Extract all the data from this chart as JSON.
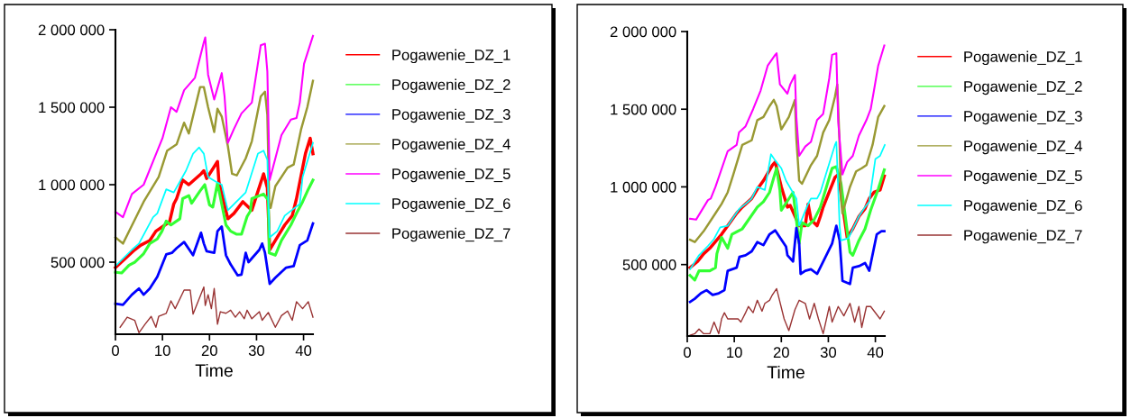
{
  "chart_data": [
    {
      "type": "line",
      "xlabel": "Time",
      "xlim": [
        0,
        42
      ],
      "ylim": [
        35000,
        2000000
      ],
      "xticks": [
        0,
        10,
        20,
        30,
        40
      ],
      "yticks": [
        {
          "value": 500000,
          "label": "500 000"
        },
        {
          "value": 1000000,
          "label": "1 000 000"
        },
        {
          "value": 1500000,
          "label": "1 500 000"
        },
        {
          "value": 2000000,
          "label": "2 000 000"
        }
      ],
      "legend": "right",
      "grid": false,
      "line_style": "solid",
      "marker": "none",
      "series": [
        {
          "name": "Pogawenie_DZ_1",
          "color": "#ff0000",
          "x": [
            0,
            4.1,
            5.4,
            7.3,
            8.6,
            11.5,
            12.4,
            13,
            14.3,
            15.6,
            18.2,
            18.8,
            19.4,
            21.7,
            22,
            23.9,
            25.2,
            27.1,
            29,
            31.5,
            32.3,
            32.8,
            34,
            36,
            37.6,
            38.5,
            40.4,
            41.4,
            42
          ],
          "values": [
            465000,
            580000,
            610000,
            640000,
            700000,
            760000,
            875000,
            910000,
            1030000,
            1000000,
            1070000,
            1090000,
            1040000,
            1150000,
            1020000,
            780000,
            815000,
            890000,
            835000,
            1070000,
            980000,
            580000,
            640000,
            740000,
            800000,
            910000,
            1200000,
            1300000,
            1200000
          ]
        },
        {
          "name": "Pogawenie_DZ_2",
          "color": "#33ff33",
          "x": [
            0,
            1.3,
            2.9,
            4.1,
            6,
            7.3,
            8.9,
            9.9,
            10.8,
            11.8,
            13.7,
            14.3,
            15.6,
            16.2,
            18,
            19,
            20,
            20.7,
            21.7,
            23.5,
            24.5,
            25.8,
            26.8,
            28,
            28.7,
            29,
            31.5,
            32.5,
            32.7,
            34,
            35.3,
            37.3,
            38.5,
            39.8,
            41,
            42
          ],
          "values": [
            435000,
            430000,
            480000,
            500000,
            555000,
            620000,
            650000,
            700000,
            765000,
            740000,
            780000,
            910000,
            930000,
            880000,
            960000,
            1000000,
            870000,
            855000,
            1010000,
            740000,
            700000,
            680000,
            680000,
            795000,
            830000,
            910000,
            940000,
            900000,
            560000,
            545000,
            640000,
            740000,
            815000,
            890000,
            970000,
            1030000
          ]
        },
        {
          "name": "Pogawenie_DZ_3",
          "color": "#0000ff",
          "x": [
            0,
            1.6,
            3.5,
            5,
            6,
            7.3,
            8.9,
            10.8,
            12,
            13,
            14.6,
            16.5,
            18.2,
            18.8,
            19.4,
            21,
            21.7,
            22.6,
            23.5,
            24.5,
            26,
            26.8,
            27.7,
            28.3,
            30.6,
            31.2,
            31.8,
            32.8,
            34,
            36.3,
            37.9,
            39.2,
            40.8,
            42
          ],
          "values": [
            232000,
            225000,
            290000,
            330000,
            290000,
            330000,
            405000,
            550000,
            560000,
            590000,
            630000,
            545000,
            690000,
            620000,
            570000,
            560000,
            700000,
            730000,
            545000,
            485000,
            415000,
            420000,
            560000,
            500000,
            580000,
            620000,
            560000,
            360000,
            400000,
            465000,
            475000,
            610000,
            640000,
            750000
          ]
        },
        {
          "name": "Pogawenie_DZ_4",
          "color": "#999933",
          "x": [
            0,
            1.6,
            6,
            9.2,
            11,
            13,
            14.6,
            15.6,
            18,
            18.8,
            19.7,
            21,
            21.7,
            22.6,
            23.9,
            24.8,
            25.8,
            27.7,
            29,
            30.9,
            31.8,
            32.3,
            32.7,
            33,
            34,
            36.6,
            37.9,
            39.5,
            40.8,
            42
          ],
          "values": [
            660000,
            620000,
            890000,
            1050000,
            1220000,
            1260000,
            1400000,
            1330000,
            1630000,
            1630000,
            1500000,
            1340000,
            1490000,
            1440000,
            1250000,
            1070000,
            1060000,
            1170000,
            1280000,
            1570000,
            1600000,
            1450000,
            880000,
            850000,
            990000,
            1110000,
            1130000,
            1360000,
            1500000,
            1670000
          ]
        },
        {
          "name": "Pogawenie_DZ_5",
          "color": "#ff00ff",
          "x": [
            0,
            1.6,
            3.5,
            6,
            8,
            10,
            11.8,
            13,
            14.6,
            16.9,
            18.8,
            19.1,
            19.7,
            21,
            22.6,
            23.2,
            23.9,
            25.2,
            26.8,
            29,
            30.9,
            31.8,
            32.3,
            32.8,
            35.3,
            37.3,
            38.5,
            39.2,
            40.1,
            42
          ],
          "values": [
            825000,
            790000,
            940000,
            1000000,
            1150000,
            1300000,
            1500000,
            1470000,
            1610000,
            1690000,
            1920000,
            1950000,
            1710000,
            1550000,
            1720000,
            1570000,
            1270000,
            1360000,
            1460000,
            1530000,
            1900000,
            1910000,
            1730000,
            1030000,
            1320000,
            1420000,
            1430000,
            1530000,
            1780000,
            1960000
          ]
        },
        {
          "name": "Pogawenie_DZ_6",
          "color": "#00ffff",
          "x": [
            0,
            3.5,
            5,
            8,
            8.9,
            10.8,
            12.4,
            15,
            16.5,
            17.8,
            18.8,
            19.7,
            21.3,
            22.6,
            23.9,
            26.4,
            27.7,
            30.3,
            31.5,
            32.3,
            32.5,
            32.8,
            34.4,
            36,
            37.9,
            39.2,
            39.8,
            42
          ],
          "values": [
            475000,
            580000,
            620000,
            790000,
            815000,
            970000,
            950000,
            1090000,
            1200000,
            1240000,
            1200000,
            1050000,
            1020000,
            1000000,
            835000,
            910000,
            950000,
            1200000,
            1220000,
            1160000,
            910000,
            660000,
            700000,
            800000,
            845000,
            875000,
            1050000,
            1270000
          ]
        },
        {
          "name": "Pogawenie_DZ_7",
          "color": "#993333",
          "x": [
            1,
            2.5,
            4.1,
            5,
            6.3,
            7.6,
            8.6,
            9.2,
            10.8,
            11.8,
            12.7,
            14.6,
            15.9,
            16.5,
            18.8,
            19.1,
            19.7,
            20.4,
            21,
            21.7,
            22.3,
            23.5,
            24.5,
            25.5,
            26.4,
            27.4,
            28,
            29,
            30.6,
            31.2,
            32.5,
            34,
            35.3,
            36.6,
            37.6,
            38.5,
            39.8,
            41,
            42
          ],
          "values": [
            80000,
            145000,
            125000,
            45000,
            100000,
            150000,
            80000,
            150000,
            170000,
            250000,
            200000,
            320000,
            320000,
            165000,
            340000,
            220000,
            290000,
            200000,
            330000,
            100000,
            180000,
            170000,
            190000,
            145000,
            180000,
            135000,
            190000,
            135000,
            180000,
            125000,
            175000,
            80000,
            155000,
            185000,
            125000,
            245000,
            200000,
            245000,
            145000
          ]
        }
      ]
    },
    {
      "type": "line",
      "xlabel": "Time",
      "xlim": [
        0,
        42
      ],
      "ylim": [
        40000,
        2000000
      ],
      "xticks": [
        0,
        10,
        20,
        30,
        40
      ],
      "yticks": [
        {
          "value": 500000,
          "label": "500 000"
        },
        {
          "value": 1000000,
          "label": "1 000 000"
        },
        {
          "value": 1500000,
          "label": "1 500 000"
        },
        {
          "value": 2000000,
          "label": "2 000 000"
        }
      ],
      "legend": "right",
      "grid": false,
      "line_style": "solid",
      "marker": "none",
      "series": [
        {
          "name": "Pogawenie_DZ_1",
          "color": "#ff0000",
          "x": [
            0.6,
            2.2,
            3.5,
            4.8,
            7.3,
            10.5,
            11.7,
            13.7,
            14.9,
            16.2,
            18.1,
            18.7,
            20,
            21.3,
            21.9,
            23.8,
            25.1,
            25.7,
            26.3,
            27.6,
            28.3,
            28.9,
            31.4,
            32.1,
            34,
            35.2,
            36.5,
            37.8,
            38.7,
            39.7,
            41,
            41.9
          ],
          "values": [
            480000,
            520000,
            570000,
            605000,
            695000,
            830000,
            870000,
            925000,
            985000,
            1040000,
            1140000,
            1160000,
            1000000,
            870000,
            880000,
            750000,
            750000,
            890000,
            790000,
            750000,
            810000,
            870000,
            1060000,
            1080000,
            675000,
            730000,
            810000,
            860000,
            925000,
            965000,
            980000,
            1070000
          ]
        },
        {
          "name": "Pogawenie_DZ_2",
          "color": "#33ff33",
          "x": [
            0.6,
            1.6,
            2.5,
            3.5,
            4.8,
            6,
            6.3,
            7.3,
            8.6,
            9.5,
            11.7,
            14.9,
            16.2,
            17.5,
            18.4,
            19,
            19.7,
            20,
            22.5,
            23.8,
            24.4,
            25.7,
            27,
            28.3,
            30.8,
            31.7,
            32.7,
            34.6,
            35.2,
            36.5,
            37.8,
            39,
            40.6,
            41.9
          ],
          "values": [
            430000,
            400000,
            460000,
            460000,
            460000,
            480000,
            570000,
            675000,
            605000,
            695000,
            730000,
            870000,
            905000,
            965000,
            1060000,
            1120000,
            980000,
            850000,
            965000,
            635000,
            770000,
            750000,
            790000,
            870000,
            1120000,
            1130000,
            1020000,
            580000,
            560000,
            655000,
            730000,
            850000,
            985000,
            1110000
          ]
        },
        {
          "name": "Pogawenie_DZ_3",
          "color": "#0000ff",
          "x": [
            0.6,
            1.6,
            2.9,
            4.1,
            5.4,
            6.7,
            7.9,
            8.6,
            10.5,
            11.1,
            12.4,
            13.7,
            14.9,
            16.2,
            17.5,
            18.7,
            21,
            21.3,
            22.5,
            23.2,
            23.8,
            24.1,
            25.1,
            26.3,
            27.6,
            28.6,
            30.8,
            31.7,
            32.4,
            32.7,
            33,
            34.6,
            35.2,
            36.5,
            37.8,
            38.7,
            40.3,
            41.3,
            41.9
          ],
          "values": [
            260000,
            280000,
            315000,
            335000,
            305000,
            315000,
            335000,
            460000,
            480000,
            550000,
            560000,
            585000,
            645000,
            625000,
            695000,
            720000,
            615000,
            560000,
            520000,
            735000,
            635000,
            440000,
            460000,
            470000,
            440000,
            500000,
            635000,
            750000,
            655000,
            530000,
            395000,
            375000,
            480000,
            490000,
            510000,
            460000,
            695000,
            715000,
            715000
          ]
        },
        {
          "name": "Pogawenie_DZ_4",
          "color": "#999933",
          "x": [
            0.6,
            1.6,
            3.5,
            6,
            7.3,
            8.6,
            9.8,
            11.7,
            13.7,
            14.9,
            16.2,
            17.5,
            18.4,
            19,
            20,
            21.6,
            22.9,
            23.2,
            23.8,
            24.4,
            26.3,
            27.6,
            28.9,
            30.2,
            31.4,
            31.9,
            32.4,
            32.7,
            33,
            34.6,
            35.9,
            37.1,
            38.1,
            39.4,
            40.6,
            41.9
          ],
          "values": [
            660000,
            645000,
            715000,
            830000,
            890000,
            965000,
            1080000,
            1270000,
            1300000,
            1430000,
            1450000,
            1520000,
            1560000,
            1520000,
            1370000,
            1450000,
            1560000,
            1310000,
            1040000,
            1020000,
            1140000,
            1200000,
            1350000,
            1430000,
            1580000,
            1660000,
            1270000,
            920000,
            830000,
            1000000,
            1100000,
            1120000,
            1140000,
            1270000,
            1450000,
            1520000
          ]
        },
        {
          "name": "Pogawenie_DZ_5",
          "color": "#ff00ff",
          "x": [
            0.6,
            1.9,
            4.4,
            5,
            6,
            8.6,
            10.5,
            11,
            12.4,
            14,
            15.6,
            17.1,
            18.7,
            19,
            19.7,
            21.3,
            21.9,
            22.9,
            23.2,
            23.8,
            25.1,
            26.3,
            27.6,
            28.9,
            30.2,
            30.8,
            31.7,
            32.1,
            33,
            34,
            35.2,
            36.5,
            38.1,
            39,
            39.7,
            40.6,
            41.9
          ],
          "values": [
            795000,
            790000,
            915000,
            925000,
            1000000,
            1230000,
            1270000,
            1350000,
            1390000,
            1500000,
            1620000,
            1780000,
            1850000,
            1860000,
            1660000,
            1600000,
            1660000,
            1720000,
            1450000,
            1200000,
            1260000,
            1290000,
            1430000,
            1470000,
            1700000,
            1850000,
            1860000,
            1420000,
            1080000,
            1160000,
            1200000,
            1330000,
            1430000,
            1500000,
            1620000,
            1780000,
            1910000
          ]
        },
        {
          "name": "Pogawenie_DZ_6",
          "color": "#00ffff",
          "x": [
            0.6,
            2.5,
            4.4,
            5.7,
            7,
            8.6,
            11.1,
            12.4,
            13.7,
            14.9,
            16.5,
            17.8,
            18.7,
            20,
            21,
            23.2,
            23.8,
            25.7,
            26.3,
            27.6,
            28.3,
            31.4,
            31.7,
            32.4,
            32.7,
            34.3,
            35.2,
            36.5,
            37.8,
            38.7,
            40,
            41,
            42
          ],
          "values": [
            470000,
            560000,
            620000,
            665000,
            740000,
            750000,
            860000,
            890000,
            925000,
            1000000,
            980000,
            1210000,
            1170000,
            1120000,
            1040000,
            925000,
            750000,
            890000,
            925000,
            925000,
            965000,
            1270000,
            1290000,
            750000,
            655000,
            670000,
            730000,
            810000,
            870000,
            905000,
            1180000,
            1200000,
            1270000
          ]
        },
        {
          "name": "Pogawenie_DZ_7",
          "color": "#993333",
          "x": [
            0.6,
            1.6,
            2.5,
            3.5,
            4.8,
            5.7,
            6.7,
            7.3,
            7.9,
            8.6,
            10.8,
            11.4,
            12.4,
            13,
            14,
            14.9,
            15.9,
            16.5,
            17.5,
            18.1,
            19,
            20.6,
            21.6,
            22.9,
            23.8,
            25.1,
            26,
            27,
            27.9,
            28.9,
            30.2,
            30.8,
            32.1,
            33.3,
            34.6,
            35.6,
            36.5,
            37.1,
            38.1,
            39,
            41,
            41.9
          ],
          "values": [
            45000,
            55000,
            85000,
            55000,
            55000,
            130000,
            55000,
            150000,
            190000,
            150000,
            150000,
            130000,
            190000,
            230000,
            190000,
            270000,
            200000,
            250000,
            270000,
            305000,
            345000,
            150000,
            75000,
            210000,
            270000,
            250000,
            150000,
            250000,
            150000,
            55000,
            230000,
            130000,
            230000,
            170000,
            250000,
            130000,
            230000,
            95000,
            230000,
            230000,
            150000,
            200000
          ]
        }
      ]
    }
  ]
}
